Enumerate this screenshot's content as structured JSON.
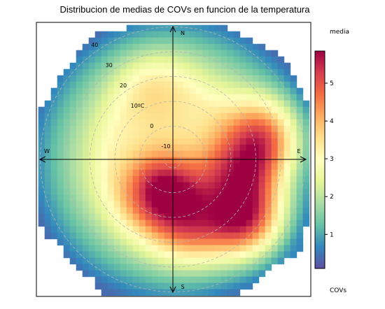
{
  "chart_data": {
    "type": "heatmap",
    "subtype": "polar",
    "title": "Distribucion de medias de COVs en funcion de la temperatura",
    "radial_variable": "temperatura",
    "radial_unit": "ºC",
    "radial_ticks": [
      "-10",
      "0",
      "10ºC",
      "20",
      "30",
      "40"
    ],
    "radial_range": [
      -10,
      47
    ],
    "directions": [
      "N",
      "E",
      "S",
      "W"
    ],
    "legend_title_top": "media",
    "legend_title_bottom": "COVs",
    "colorbar_ticks": [
      "1",
      "2",
      "3",
      "4",
      "5"
    ],
    "colorbar_range": [
      0.1,
      5.85
    ],
    "colormap": "spectral-reversed",
    "hotspots": [
      {
        "direction_deg": 200,
        "temperature": 0,
        "value": 5.8
      },
      {
        "direction_deg": 130,
        "temperature": 23,
        "value": 5.2
      },
      {
        "direction_deg": 100,
        "temperature": 13,
        "value": 4.8
      },
      {
        "direction_deg": 75,
        "temperature": 22,
        "value": 4.6
      },
      {
        "direction_deg": 165,
        "temperature": 12,
        "value": 4.5
      },
      {
        "direction_deg": 345,
        "temperature": 12,
        "value": 3.6
      }
    ]
  }
}
